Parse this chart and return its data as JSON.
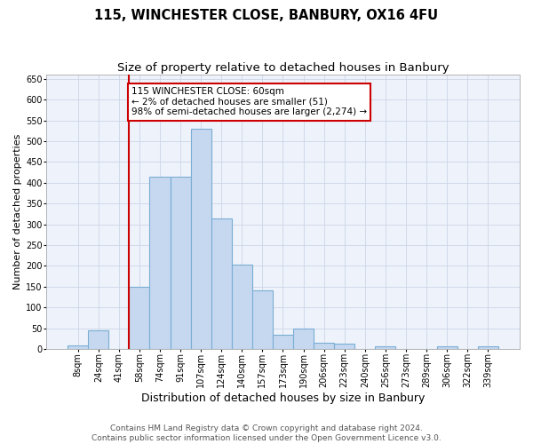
{
  "title": "115, WINCHESTER CLOSE, BANBURY, OX16 4FU",
  "subtitle": "Size of property relative to detached houses in Banbury",
  "xlabel": "Distribution of detached houses by size in Banbury",
  "ylabel": "Number of detached properties",
  "categories": [
    "8sqm",
    "24sqm",
    "41sqm",
    "58sqm",
    "74sqm",
    "91sqm",
    "107sqm",
    "124sqm",
    "140sqm",
    "157sqm",
    "173sqm",
    "190sqm",
    "206sqm",
    "223sqm",
    "240sqm",
    "256sqm",
    "273sqm",
    "289sqm",
    "306sqm",
    "322sqm",
    "339sqm"
  ],
  "values": [
    8,
    45,
    0,
    150,
    415,
    415,
    530,
    315,
    202,
    140,
    35,
    48,
    15,
    12,
    0,
    7,
    0,
    0,
    7,
    0,
    7
  ],
  "bar_color": "#c5d8f0",
  "bar_edge_color": "#7aadd4",
  "bar_edge_width": 0.8,
  "vline_color": "#cc0000",
  "annotation_text": "115 WINCHESTER CLOSE: 60sqm\n← 2% of detached houses are smaller (51)\n98% of semi-detached houses are larger (2,274) →",
  "annotation_box_color": "#ffffff",
  "annotation_box_edge_color": "#cc0000",
  "ylim": [
    0,
    660
  ],
  "yticks": [
    0,
    50,
    100,
    150,
    200,
    250,
    300,
    350,
    400,
    450,
    500,
    550,
    600,
    650
  ],
  "grid_color": "#ccd6e8",
  "background_color": "#eef2fa",
  "footer_line1": "Contains HM Land Registry data © Crown copyright and database right 2024.",
  "footer_line2": "Contains public sector information licensed under the Open Government Licence v3.0.",
  "title_fontsize": 10.5,
  "subtitle_fontsize": 9.5,
  "xlabel_fontsize": 9,
  "ylabel_fontsize": 8,
  "tick_fontsize": 7,
  "annotation_fontsize": 7.5,
  "footer_fontsize": 6.5
}
